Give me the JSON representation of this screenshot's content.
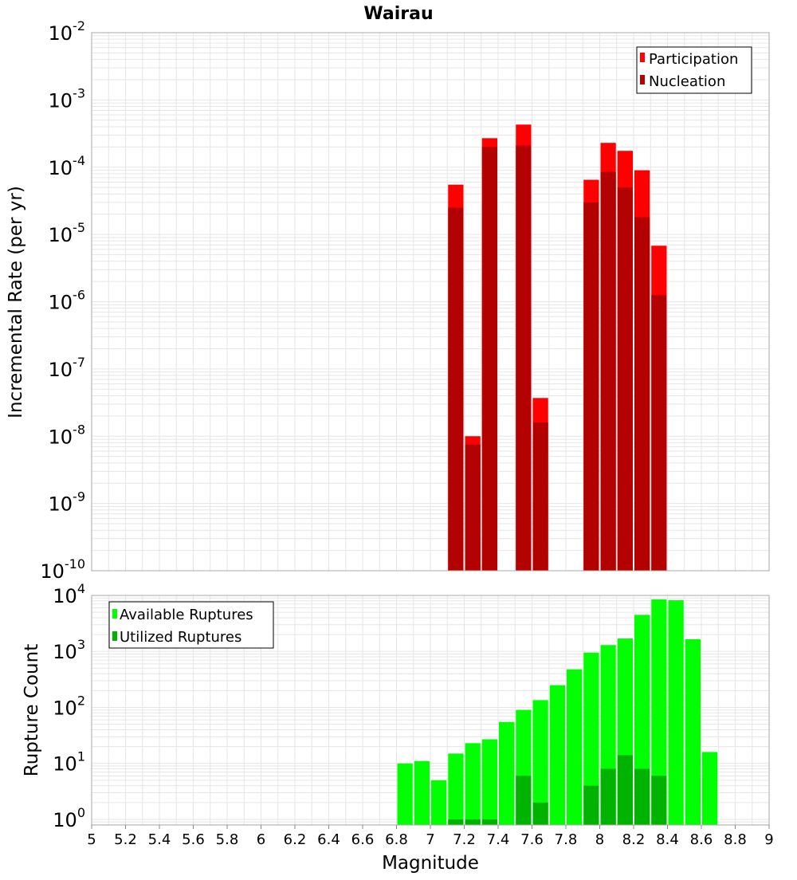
{
  "title": "Wairau",
  "xlabel": "Magnitude",
  "colors": {
    "participation": "#ff0000",
    "nucleation": "#b30000",
    "available": "#00ff00",
    "utilized": "#00b300",
    "grid": "#e6e6e6",
    "frame": "#aaaaaa"
  },
  "chart_data": [
    {
      "type": "bar",
      "scale": "log",
      "ylabel": "Incremental Rate (per yr)",
      "xlim": [
        5,
        9
      ],
      "ylim_exponents": [
        -10,
        -2
      ],
      "ytick_exponents": [
        -10,
        -9,
        -8,
        -7,
        -6,
        -5,
        -4,
        -3,
        -2
      ],
      "legend_position": "top-right",
      "series": [
        {
          "name": "Participation",
          "x": [
            7.15,
            7.25,
            7.35,
            7.55,
            7.65,
            7.95,
            8.05,
            8.15,
            8.25,
            8.35
          ],
          "values": [
            5.5e-05,
            1e-08,
            0.00027,
            0.00043,
            3.7e-08,
            6.5e-05,
            0.00023,
            0.000175,
            9e-05,
            6.8e-06
          ]
        },
        {
          "name": "Nucleation",
          "x": [
            7.15,
            7.25,
            7.35,
            7.55,
            7.65,
            7.95,
            8.05,
            8.15,
            8.25,
            8.35
          ],
          "values": [
            2.5e-05,
            7.5e-09,
            0.0002,
            0.00021,
            1.6e-08,
            3e-05,
            8.5e-05,
            5e-05,
            1.8e-05,
            1.25e-06
          ]
        }
      ]
    },
    {
      "type": "bar",
      "scale": "log",
      "ylabel": "Rupture Count",
      "xlim": [
        5,
        9
      ],
      "ylim_exponents": [
        -0.1,
        4
      ],
      "ytick_exponents": [
        0,
        1,
        2,
        3,
        4
      ],
      "legend_position": "top-left",
      "series": [
        {
          "name": "Available Ruptures",
          "x": [
            6.85,
            6.95,
            7.05,
            7.15,
            7.25,
            7.35,
            7.45,
            7.55,
            7.65,
            7.75,
            7.85,
            7.95,
            8.05,
            8.15,
            8.25,
            8.35,
            8.45,
            8.55,
            8.65
          ],
          "values": [
            10,
            11,
            5,
            15,
            23,
            27,
            55,
            90,
            135,
            250,
            480,
            950,
            1300,
            1700,
            4500,
            8500,
            8200,
            1650,
            16
          ]
        },
        {
          "name": "Utilized Ruptures",
          "x": [
            7.15,
            7.25,
            7.35,
            7.55,
            7.65,
            7.95,
            8.05,
            8.15,
            8.25,
            8.35
          ],
          "values": [
            1,
            1,
            1,
            6,
            2,
            4,
            8,
            14,
            8,
            6
          ]
        }
      ]
    }
  ],
  "xticks": [
    "5",
    "5.2",
    "5.4",
    "5.6",
    "5.8",
    "6",
    "6.2",
    "6.4",
    "6.6",
    "6.8",
    "7",
    "7.2",
    "7.4",
    "7.6",
    "7.8",
    "8",
    "8.2",
    "8.4",
    "8.6",
    "8.8",
    "9"
  ],
  "tick_base": "10"
}
